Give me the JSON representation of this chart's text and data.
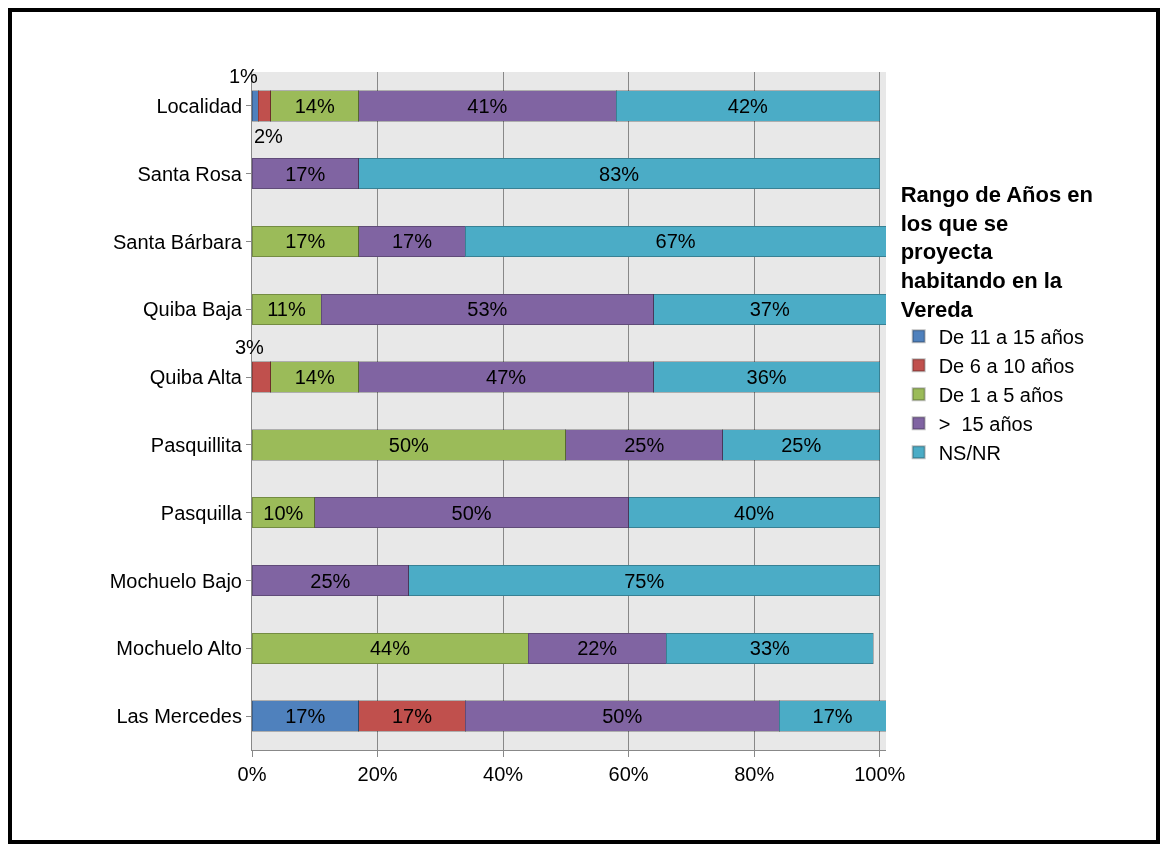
{
  "chart_data": {
    "type": "bar",
    "orientation": "horizontal",
    "stacked": true,
    "categories": [
      "Localidad",
      "Santa Rosa",
      "Santa Bárbara",
      "Quiba Baja",
      "Quiba Alta",
      "Pasquillita",
      "Pasquilla",
      "Mochuelo Bajo",
      "Mochuelo Alto",
      "Las Mercedes"
    ],
    "legend_title": "Rango de Años en los que se proyecta habitando en la Vereda",
    "series": [
      {
        "name": "De 11 a 15 años",
        "color": "#4f81bd",
        "values": [
          1,
          null,
          null,
          null,
          null,
          null,
          null,
          null,
          null,
          17
        ],
        "value_labels": [
          "1%",
          null,
          null,
          null,
          null,
          null,
          null,
          null,
          null,
          "17%"
        ]
      },
      {
        "name": "De 6 a 10 años",
        "color": "#c0504d",
        "values": [
          2,
          null,
          null,
          null,
          3,
          null,
          null,
          null,
          null,
          17
        ],
        "value_labels": [
          "2%",
          null,
          null,
          null,
          "3%",
          null,
          null,
          null,
          null,
          "17%"
        ]
      },
      {
        "name": "De 1 a 5 años",
        "color": "#9bbb59",
        "values": [
          14,
          null,
          17,
          11,
          14,
          50,
          10,
          null,
          44,
          null
        ],
        "value_labels": [
          "14%",
          null,
          "17%",
          "11%",
          "14%",
          "50%",
          "10%",
          null,
          "44%",
          null
        ]
      },
      {
        "name": ">  15 años",
        "color": "#8064a2",
        "values": [
          41,
          17,
          17,
          53,
          47,
          25,
          50,
          25,
          22,
          50
        ],
        "value_labels": [
          "41%",
          "17%",
          "17%",
          "53%",
          "47%",
          "25%",
          "50%",
          "25%",
          "22%",
          "50%"
        ]
      },
      {
        "name": "NS/NR",
        "color": "#4bacc6",
        "values": [
          42,
          83,
          67,
          37,
          36,
          25,
          40,
          75,
          33,
          17
        ],
        "value_labels": [
          "42%",
          "83%",
          "67%",
          "37%",
          "36%",
          "25%",
          "40%",
          "75%",
          "33%",
          "17%"
        ]
      }
    ],
    "xlim": [
      0,
      101
    ],
    "xticks": [
      {
        "value": 0,
        "label": "0%"
      },
      {
        "value": 20,
        "label": "20%"
      },
      {
        "value": 40,
        "label": "40%"
      },
      {
        "value": 60,
        "label": "60%"
      },
      {
        "value": 80,
        "label": "80%"
      },
      {
        "value": 100,
        "label": "100%"
      }
    ],
    "grid": "x",
    "legend": "right"
  }
}
